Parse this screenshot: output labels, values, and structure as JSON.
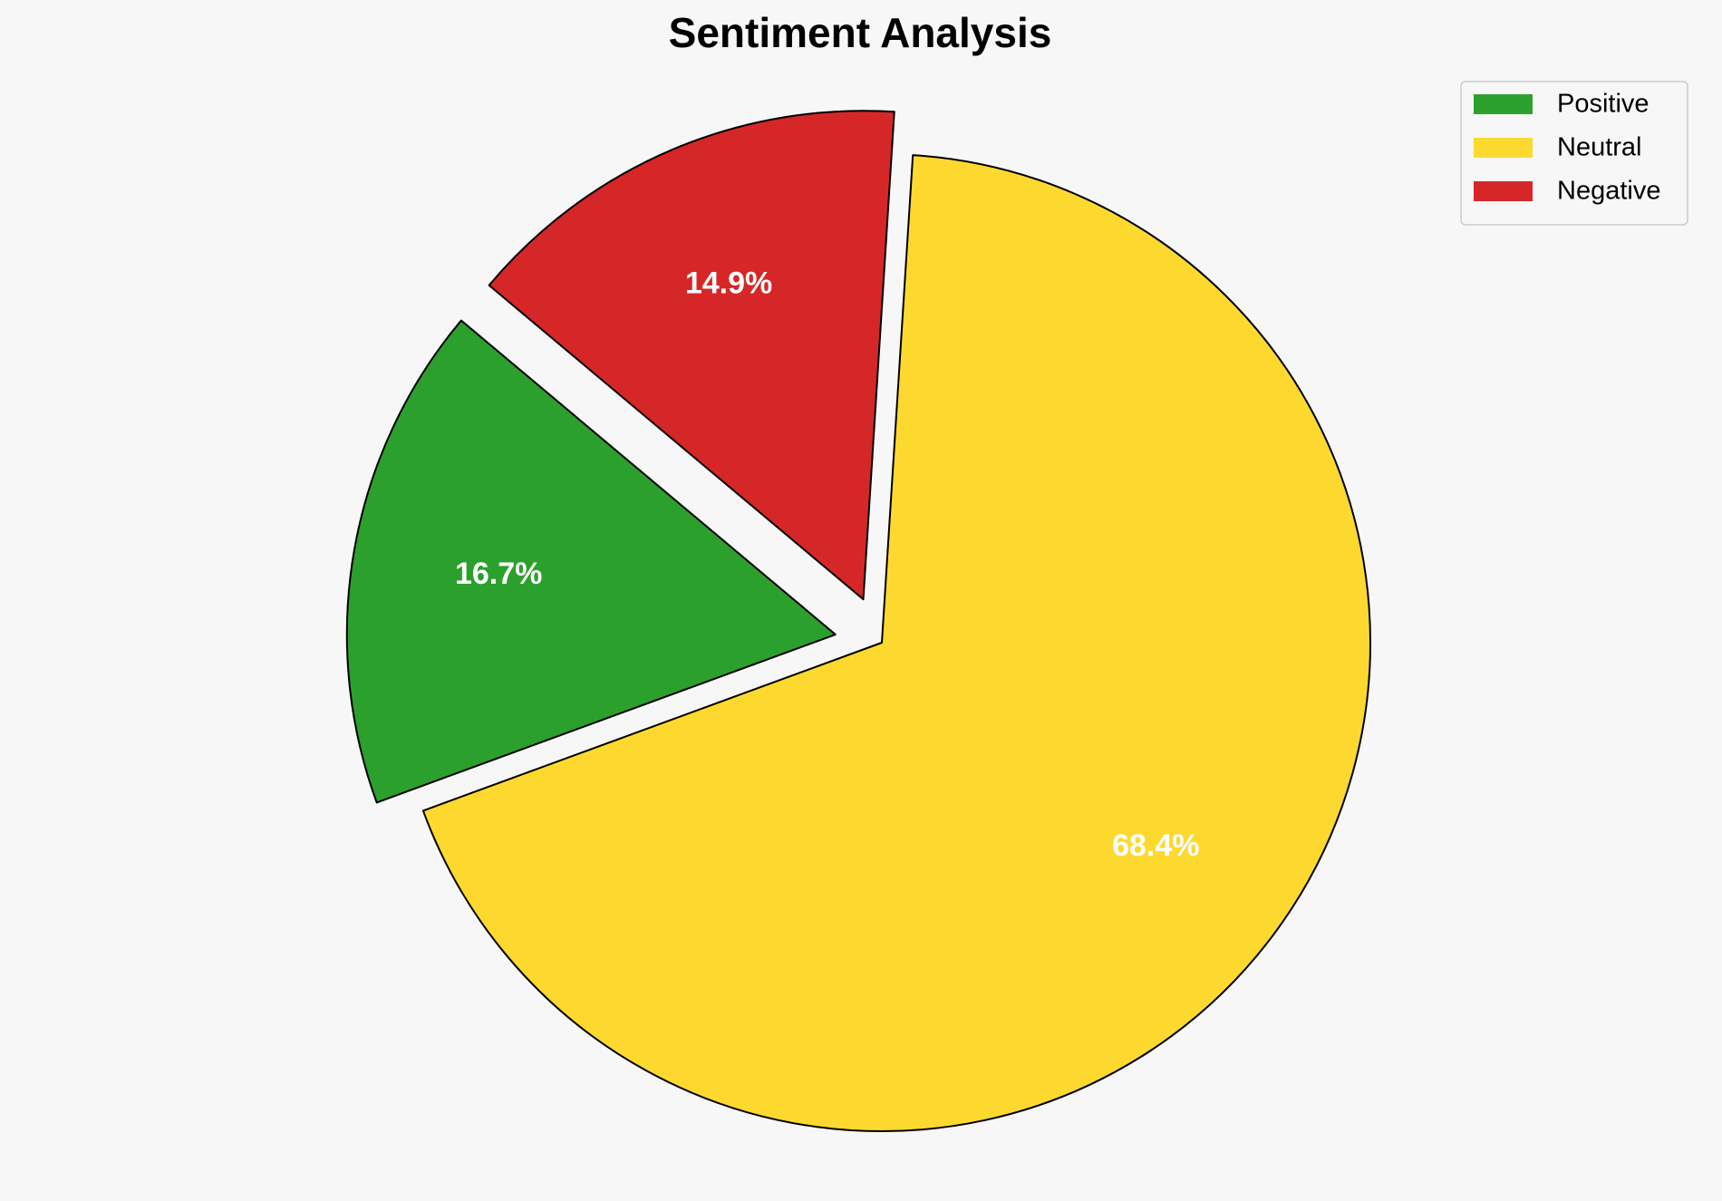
{
  "chart_data": {
    "type": "pie",
    "title": "Sentiment Analysis",
    "categories": [
      "Positive",
      "Neutral",
      "Negative"
    ],
    "values": [
      16.7,
      68.4,
      14.9
    ],
    "value_labels": [
      "16.7%",
      "68.4%",
      "14.9%"
    ],
    "colors": [
      "#2ca02c",
      "#fdd930",
      "#d62728"
    ],
    "legend": "upper right"
  }
}
